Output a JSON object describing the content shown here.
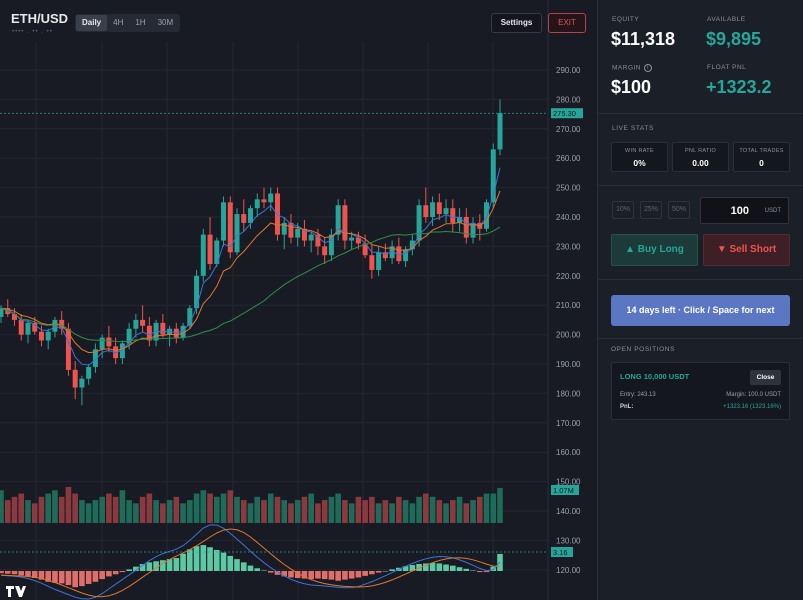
{
  "header": {
    "pair": "ETH/USD",
    "pair_sub": "•••• . •• . ••",
    "timeframes": [
      "Daily",
      "4H",
      "1H",
      "30M"
    ],
    "active_timeframe": "Daily",
    "settings_label": "Settings",
    "exit_label": "EXIT"
  },
  "account": {
    "equity_label": "EQUITY",
    "equity": "$11,318",
    "available_label": "AVAILABLE",
    "available": "$9,895",
    "margin_label": "MARGIN",
    "margin_icon": "i",
    "margin": "$100",
    "float_pnl_label": "FLOAT PNL",
    "float_pnl": "+1323.2"
  },
  "live_stats": {
    "title": "LIVE STATS",
    "items": [
      {
        "label": "WIN RATE",
        "value": "0%"
      },
      {
        "label": "PNL RATIO",
        "value": "0.00"
      },
      {
        "label": "TOTAL TRADES",
        "value": "0"
      }
    ]
  },
  "order": {
    "pct_options": [
      "10%",
      "25%",
      "50%"
    ],
    "amount": "100",
    "unit": "USDT",
    "buy_label": "▲ Buy Long",
    "sell_label": "▼ Sell Short",
    "next_label": "14 days left · Click / Space for next"
  },
  "positions": {
    "title": "OPEN POSITIONS",
    "items": [
      {
        "title": "LONG 10,000 USDT",
        "close_label": "Close",
        "entry": "Entry: 243.13",
        "margin": "Margin: 100.0 USDT",
        "pnl_label": "PnL:",
        "pnl": "+1323.16 (1323.16%)"
      }
    ]
  },
  "colors": {
    "up": "#26a69a",
    "down": "#ef5350",
    "accent": "#5b77c4"
  },
  "chart_data": {
    "type": "candlestick",
    "symbol": "ETH/USD",
    "interval": "Daily",
    "y_ticks": [
      290,
      280,
      270,
      260,
      250,
      240,
      230,
      220,
      210,
      200,
      190,
      180,
      170,
      160,
      150,
      140,
      130,
      120
    ],
    "y_range": [
      115,
      295
    ],
    "last_price": "275.30",
    "last_volume": "1.07M",
    "last_macd": "3.16",
    "candles": [
      [
        206,
        210,
        204,
        209
      ],
      [
        209,
        212,
        206,
        207
      ],
      [
        207,
        209,
        203,
        205
      ],
      [
        205,
        207,
        198,
        200
      ],
      [
        200,
        205,
        197,
        204
      ],
      [
        204,
        206,
        200,
        201
      ],
      [
        201,
        203,
        196,
        198
      ],
      [
        198,
        202,
        195,
        201
      ],
      [
        201,
        206,
        199,
        205
      ],
      [
        205,
        208,
        200,
        202
      ],
      [
        202,
        204,
        186,
        188
      ],
      [
        188,
        191,
        178,
        182
      ],
      [
        182,
        186,
        176,
        185
      ],
      [
        185,
        190,
        183,
        189
      ],
      [
        189,
        197,
        187,
        195
      ],
      [
        195,
        200,
        192,
        199
      ],
      [
        199,
        203,
        194,
        196
      ],
      [
        196,
        199,
        190,
        192
      ],
      [
        192,
        198,
        190,
        197
      ],
      [
        197,
        204,
        195,
        202
      ],
      [
        202,
        207,
        199,
        205
      ],
      [
        205,
        210,
        201,
        203
      ],
      [
        203,
        206,
        196,
        198
      ],
      [
        198,
        205,
        196,
        204
      ],
      [
        204,
        207,
        199,
        200
      ],
      [
        200,
        203,
        196,
        202
      ],
      [
        202,
        204,
        197,
        199
      ],
      [
        199,
        204,
        198,
        203
      ],
      [
        203,
        210,
        202,
        209
      ],
      [
        209,
        222,
        207,
        220
      ],
      [
        220,
        236,
        218,
        234
      ],
      [
        234,
        240,
        222,
        224
      ],
      [
        224,
        233,
        223,
        232
      ],
      [
        232,
        247,
        230,
        245
      ],
      [
        245,
        247,
        226,
        228
      ],
      [
        228,
        243,
        227,
        241
      ],
      [
        241,
        246,
        235,
        238
      ],
      [
        238,
        244,
        236,
        243
      ],
      [
        243,
        248,
        240,
        246
      ],
      [
        246,
        250,
        243,
        245
      ],
      [
        245,
        250,
        242,
        248
      ],
      [
        248,
        250,
        232,
        234
      ],
      [
        234,
        240,
        229,
        238
      ],
      [
        238,
        241,
        231,
        233
      ],
      [
        233,
        238,
        230,
        236
      ],
      [
        236,
        239,
        230,
        232
      ],
      [
        232,
        235,
        228,
        234
      ],
      [
        234,
        236,
        227,
        230
      ],
      [
        230,
        233,
        224,
        227
      ],
      [
        227,
        236,
        225,
        234
      ],
      [
        234,
        246,
        232,
        244
      ],
      [
        244,
        246,
        229,
        232
      ],
      [
        232,
        235,
        229,
        233
      ],
      [
        233,
        235,
        229,
        231
      ],
      [
        231,
        234,
        226,
        227
      ],
      [
        227,
        231,
        219,
        222
      ],
      [
        222,
        230,
        220,
        228
      ],
      [
        228,
        231,
        225,
        226
      ],
      [
        226,
        232,
        224,
        230
      ],
      [
        230,
        233,
        224,
        225
      ],
      [
        225,
        230,
        223,
        229
      ],
      [
        229,
        234,
        227,
        232
      ],
      [
        232,
        246,
        230,
        244
      ],
      [
        244,
        250,
        238,
        240
      ],
      [
        240,
        247,
        237,
        245
      ],
      [
        245,
        248,
        239,
        241
      ],
      [
        241,
        246,
        238,
        243
      ],
      [
        243,
        246,
        235,
        238
      ],
      [
        238,
        243,
        235,
        240
      ],
      [
        240,
        243,
        231,
        233
      ],
      [
        233,
        240,
        231,
        238
      ],
      [
        238,
        241,
        232,
        236
      ],
      [
        236,
        246,
        235,
        245
      ],
      [
        245,
        265,
        243,
        263
      ],
      [
        263,
        280,
        261,
        275.3
      ]
    ],
    "volume": [
      1.0,
      0.7,
      0.8,
      0.9,
      0.7,
      0.6,
      0.8,
      0.9,
      1.0,
      0.8,
      1.1,
      0.9,
      0.7,
      0.6,
      0.7,
      0.8,
      0.9,
      0.8,
      1.0,
      0.7,
      0.6,
      0.8,
      0.9,
      0.7,
      0.6,
      0.7,
      0.8,
      0.6,
      0.7,
      0.9,
      1.0,
      0.9,
      0.8,
      0.9,
      1.0,
      0.8,
      0.7,
      0.6,
      0.8,
      0.7,
      0.9,
      0.8,
      0.7,
      0.6,
      0.7,
      0.8,
      0.9,
      0.6,
      0.7,
      0.8,
      0.9,
      0.7,
      0.6,
      0.8,
      0.7,
      0.8,
      0.6,
      0.7,
      0.6,
      0.8,
      0.7,
      0.6,
      0.8,
      0.9,
      0.8,
      0.7,
      0.6,
      0.7,
      0.8,
      0.6,
      0.7,
      0.8,
      0.9,
      0.9,
      1.07
    ],
    "macd_hist": [
      -0.4,
      -0.5,
      -0.6,
      -0.8,
      -1.0,
      -1.3,
      -1.6,
      -2.0,
      -2.2,
      -2.3,
      -2.6,
      -3.0,
      -2.8,
      -2.4,
      -2.0,
      -1.5,
      -1.0,
      -0.6,
      -0.2,
      0.3,
      0.8,
      1.3,
      1.6,
      1.8,
      2.0,
      2.2,
      2.4,
      3.2,
      4.0,
      4.6,
      4.8,
      4.4,
      3.9,
      3.4,
      2.8,
      2.2,
      1.6,
      1.0,
      0.5,
      0.1,
      -0.3,
      -0.7,
      -1.0,
      -1.2,
      -1.3,
      -1.4,
      -1.5,
      -1.4,
      -1.5,
      -1.6,
      -1.8,
      -1.6,
      -1.4,
      -1.2,
      -0.9,
      -0.6,
      -0.3,
      0.0,
      0.3,
      0.6,
      0.9,
      1.1,
      1.3,
      1.4,
      1.5,
      1.4,
      1.2,
      1.0,
      0.7,
      0.4,
      0.1,
      -0.2,
      -0.2,
      0.8,
      3.16
    ]
  }
}
